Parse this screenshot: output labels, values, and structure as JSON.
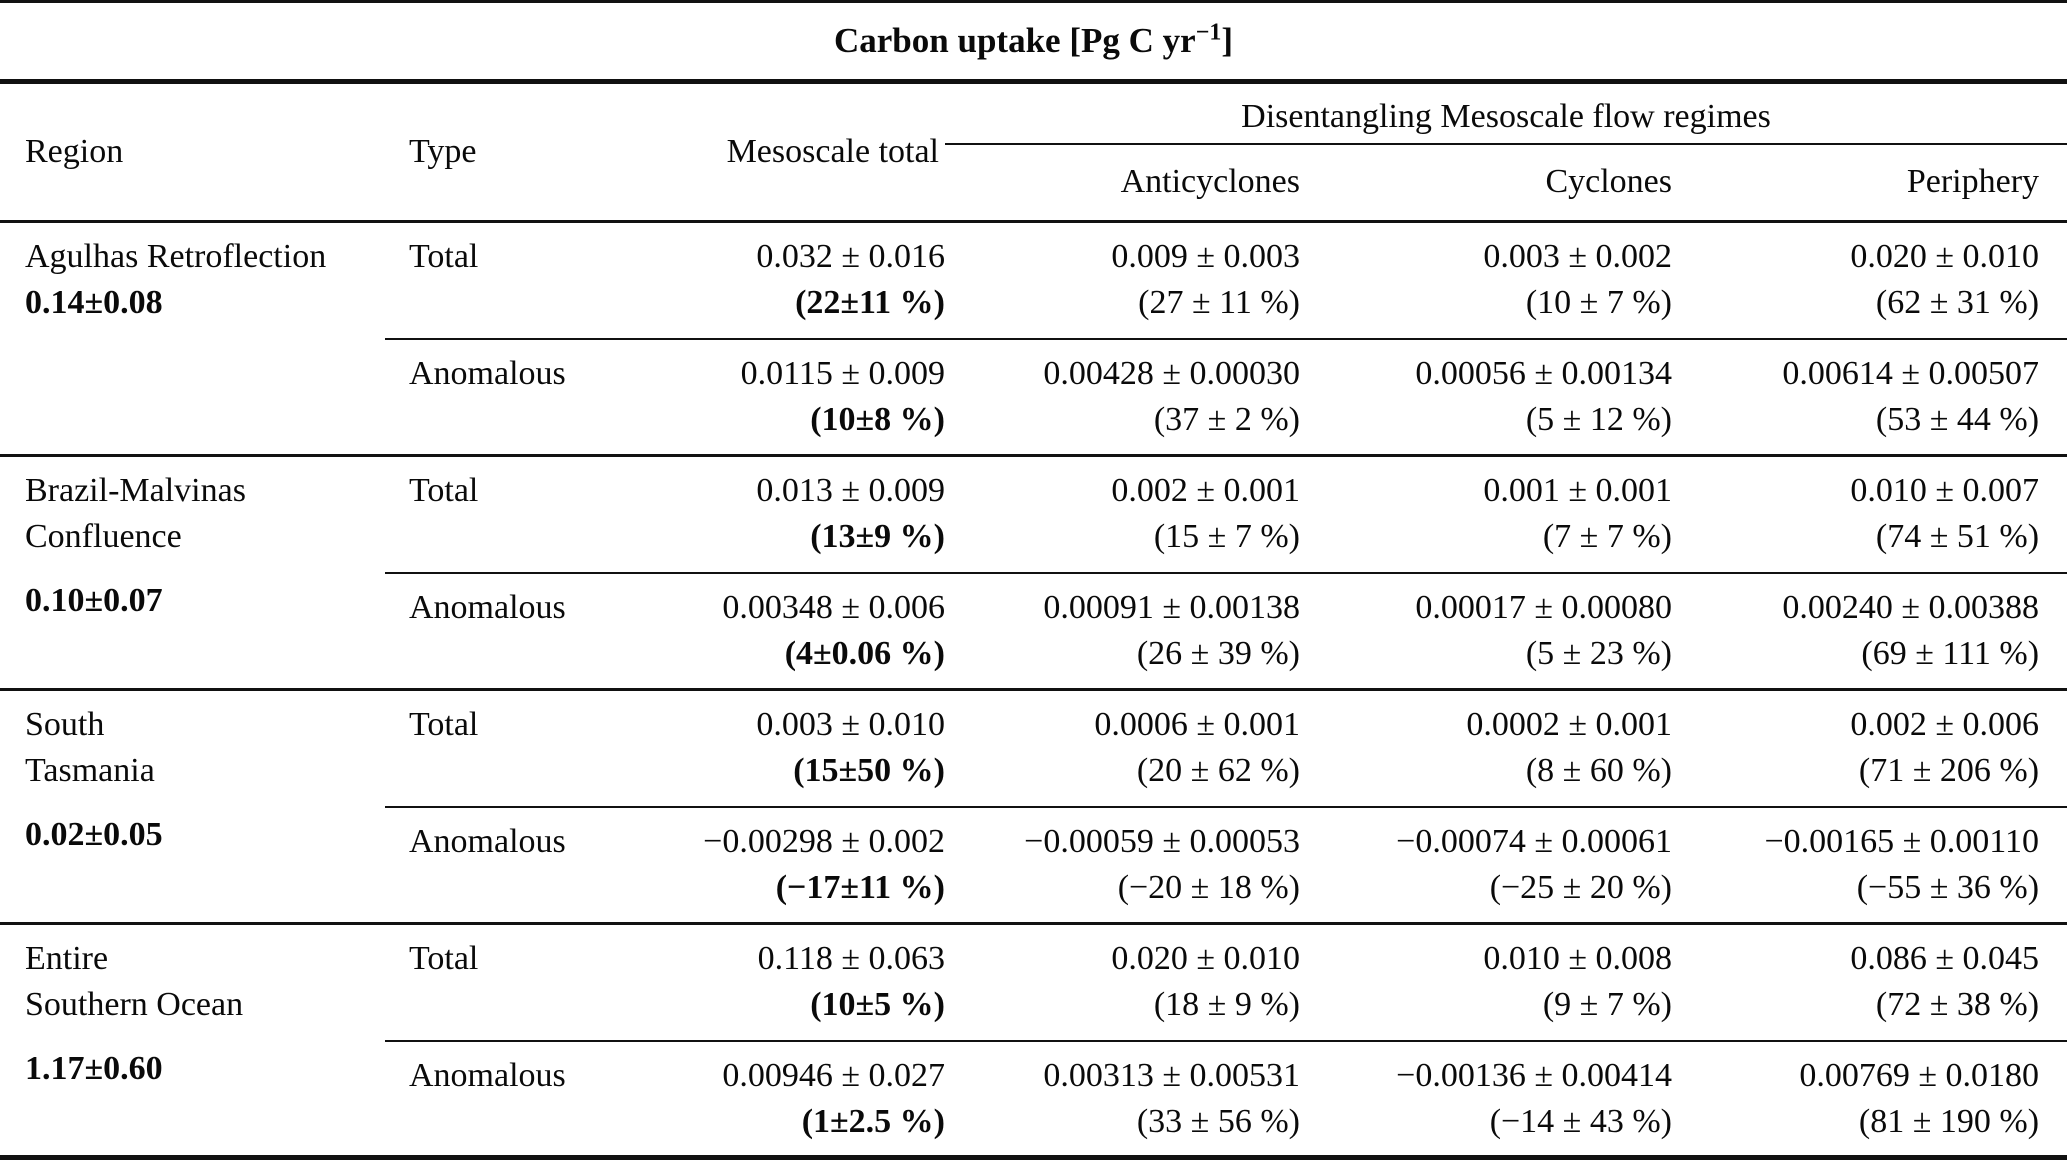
{
  "title": {
    "text": "Carbon uptake [Pg C yr",
    "exponent": "−1",
    "close": "]"
  },
  "header": {
    "region": "Region",
    "type": "Type",
    "mesoscale_total": "Mesoscale total",
    "group": "Disentangling Mesoscale flow regimes",
    "anticyclones": "Anticyclones",
    "cyclones": "Cyclones",
    "periphery": "Periphery"
  },
  "regions": [
    {
      "name_line1": "Agulhas Retroflection",
      "total": "0.14±0.08"
    },
    {
      "name_line1": "Brazil-Malvinas",
      "name_line2": "Confluence",
      "total": "0.10±0.07"
    },
    {
      "name_line1": "South",
      "name_line2": "Tasmania",
      "total": "0.02±0.05"
    },
    {
      "name_line1": "Entire",
      "name_line2": "Southern Ocean",
      "total": "1.17±0.60"
    }
  ],
  "rows": [
    {
      "type": "Total",
      "mt_value": "0.032 ± 0.016",
      "mt_pct": "(22±11 %)",
      "ac_value": "0.009 ± 0.003",
      "ac_pct": "(27 ± 11 %)",
      "cy_value": "0.003 ± 0.002",
      "cy_pct": "(10 ± 7 %)",
      "pe_value": "0.020 ± 0.010",
      "pe_pct": "(62 ± 31 %)"
    },
    {
      "type": "Anomalous",
      "mt_value": "0.0115 ± 0.009",
      "mt_pct": "(10±8 %)",
      "ac_value": "0.00428 ± 0.00030",
      "ac_pct": "(37 ± 2 %)",
      "cy_value": "0.00056 ± 0.00134",
      "cy_pct": "(5 ± 12 %)",
      "pe_value": "0.00614 ± 0.00507",
      "pe_pct": "(53 ± 44 %)"
    },
    {
      "type": "Total",
      "mt_value": "0.013 ± 0.009",
      "mt_pct": "(13±9 %)",
      "ac_value": "0.002 ± 0.001",
      "ac_pct": "(15 ± 7 %)",
      "cy_value": "0.001 ± 0.001",
      "cy_pct": "(7 ± 7 %)",
      "pe_value": "0.010 ± 0.007",
      "pe_pct": "(74 ± 51 %)"
    },
    {
      "type": "Anomalous",
      "mt_value": "0.00348 ± 0.006",
      "mt_pct": "(4±0.06 %)",
      "ac_value": "0.00091 ± 0.00138",
      "ac_pct": "(26 ± 39 %)",
      "cy_value": "0.00017 ± 0.00080",
      "cy_pct": "(5 ± 23 %)",
      "pe_value": "0.00240 ± 0.00388",
      "pe_pct": "(69 ± 111 %)"
    },
    {
      "type": "Total",
      "mt_value": "0.003 ± 0.010",
      "mt_pct": "(15±50 %)",
      "ac_value": "0.0006 ± 0.001",
      "ac_pct": "(20 ± 62 %)",
      "cy_value": "0.0002 ± 0.001",
      "cy_pct": "(8 ± 60 %)",
      "pe_value": "0.002 ± 0.006",
      "pe_pct": "(71 ± 206 %)"
    },
    {
      "type": "Anomalous",
      "mt_value": "−0.00298 ± 0.002",
      "mt_pct": "(−17±11 %)",
      "ac_value": "−0.00059 ± 0.00053",
      "ac_pct": "(−20 ± 18 %)",
      "cy_value": "−0.00074 ± 0.00061",
      "cy_pct": "(−25 ± 20 %)",
      "pe_value": "−0.00165 ± 0.00110",
      "pe_pct": "(−55 ± 36 %)"
    },
    {
      "type": "Total",
      "mt_value": "0.118 ± 0.063",
      "mt_pct": "(10±5 %)",
      "ac_value": "0.020 ± 0.010",
      "ac_pct": "(18 ± 9 %)",
      "cy_value": "0.010 ± 0.008",
      "cy_pct": "(9 ± 7 %)",
      "pe_value": "0.086 ± 0.045",
      "pe_pct": "(72 ± 38 %)"
    },
    {
      "type": "Anomalous",
      "mt_value": "0.00946 ± 0.027",
      "mt_pct": "(1±2.5 %)",
      "ac_value": "0.00313 ± 0.00531",
      "ac_pct": "(33 ± 56 %)",
      "cy_value": "−0.00136 ± 0.00414",
      "cy_pct": "(−14 ± 43 %)",
      "pe_value": "0.00769 ± 0.0180",
      "pe_pct": "(81 ± 190 %)"
    }
  ]
}
